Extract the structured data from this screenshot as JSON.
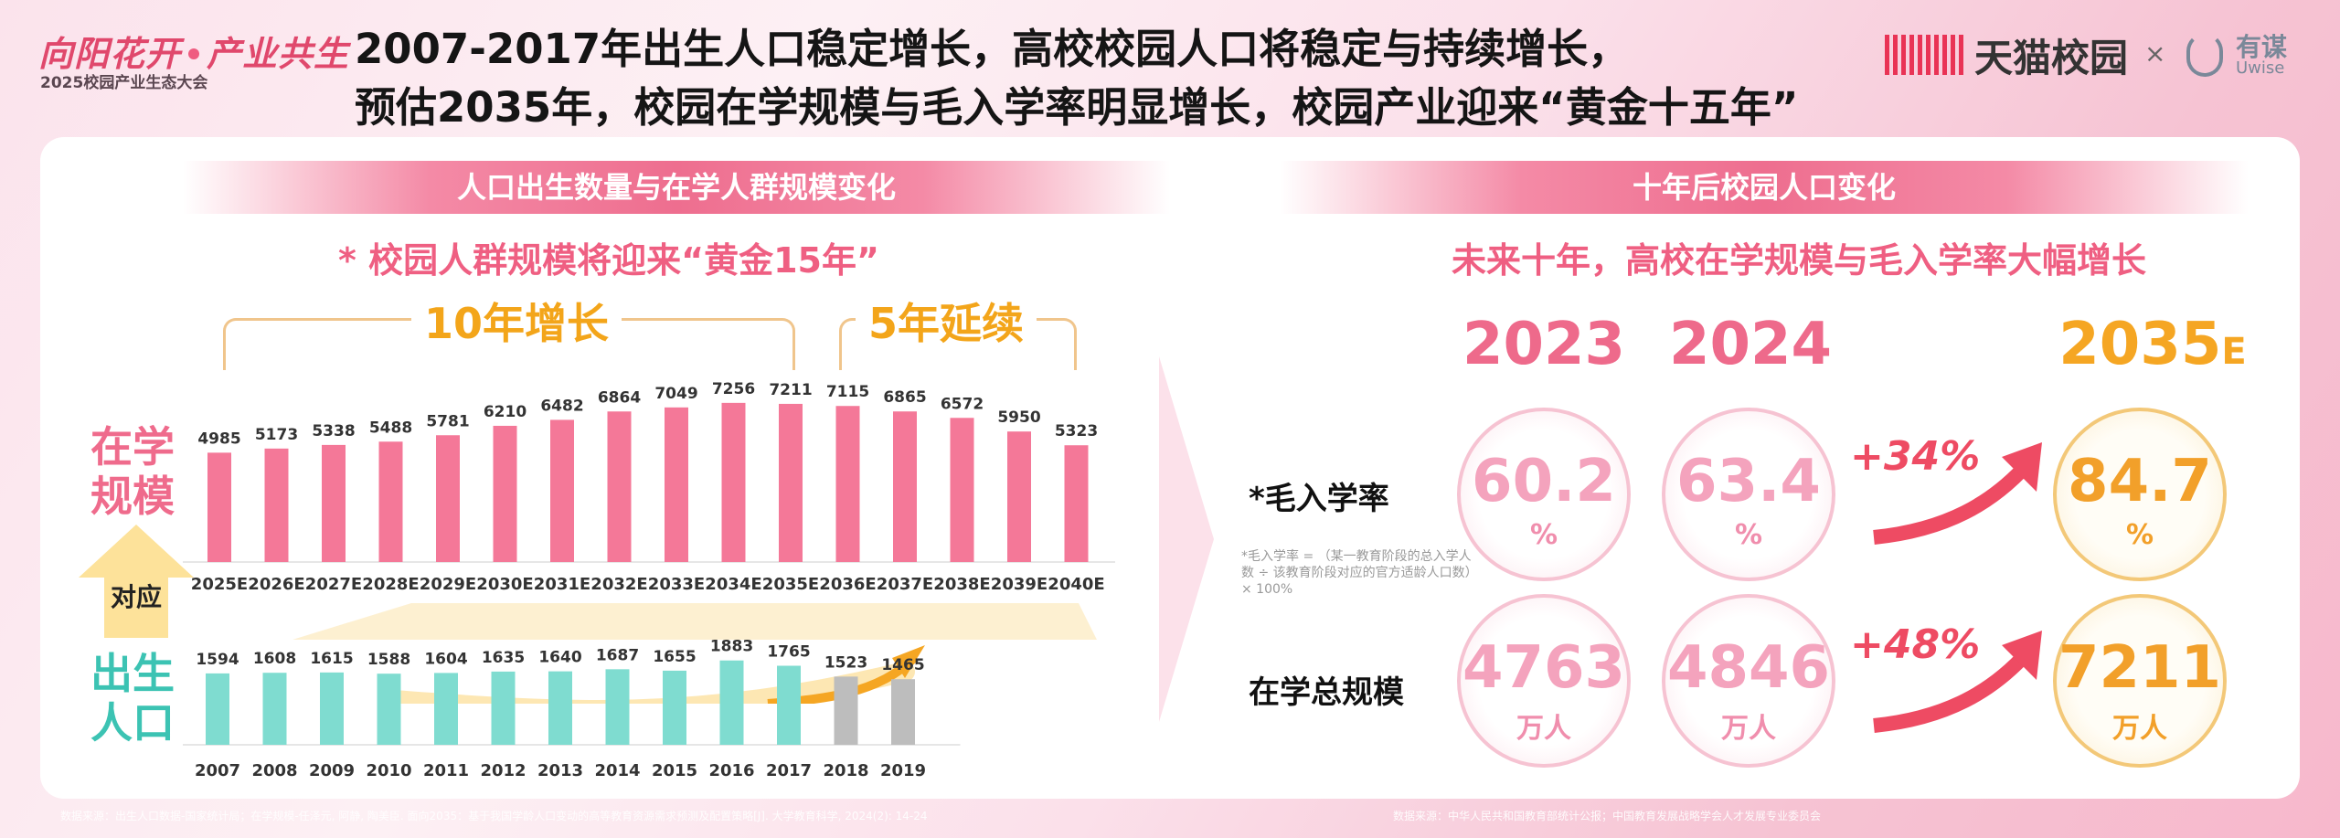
{
  "header": {
    "logo_title_left": "向阳花开",
    "logo_title_right": "产业共生",
    "logo_subtitle": "2025校园产业生态大会",
    "headline_line1": "2007-2017年出生人口稳定增长，高校校园人口将稳定与持续增长，",
    "headline_line2": "预估2035年，校园在学规模与毛入学率明显增长，校园产业迎来“黄金十五年”",
    "brand_tmall": "天猫校园",
    "brand_sep": "×",
    "brand_uwise_cn": "有谋",
    "brand_uwise_en": "Uwise"
  },
  "left_panel": {
    "band_title": "人口出生数量与在学人群规模变化",
    "subtitle": "* 校园人群规模将迎来“黄金15年”",
    "bracket_growth": "10年增长",
    "bracket_continue": "5年延续",
    "label_enrolled": "在学规模",
    "label_births": "出生人口",
    "label_correspond": "对应"
  },
  "chart_data": [
    {
      "type": "bar",
      "name": "在学规模",
      "categories": [
        "2025E",
        "2026E",
        "2027E",
        "2028E",
        "2029E",
        "2030E",
        "2031E",
        "2032E",
        "2033E",
        "2034E",
        "2035E",
        "2036E",
        "2037E",
        "2038E",
        "2039E",
        "2040E"
      ],
      "values": [
        4985,
        5173,
        5338,
        5488,
        5781,
        6210,
        6482,
        6864,
        7049,
        7256,
        7211,
        7115,
        6865,
        6572,
        5950,
        5323
      ],
      "ylim": [
        0,
        7500
      ],
      "color": "#f47898"
    },
    {
      "type": "bar",
      "name": "出生人口",
      "categories": [
        "2007",
        "2008",
        "2009",
        "2010",
        "2011",
        "2012",
        "2013",
        "2014",
        "2015",
        "2016",
        "2017",
        "2018",
        "2019"
      ],
      "values": [
        1594,
        1608,
        1615,
        1588,
        1604,
        1635,
        1640,
        1687,
        1655,
        1883,
        1765,
        1523,
        1465
      ],
      "ylim": [
        0,
        2000
      ],
      "colors": [
        "#7fdcd0",
        "#7fdcd0",
        "#7fdcd0",
        "#7fdcd0",
        "#7fdcd0",
        "#7fdcd0",
        "#7fdcd0",
        "#7fdcd0",
        "#7fdcd0",
        "#7fdcd0",
        "#7fdcd0",
        "#bdbdbd",
        "#bdbdbd"
      ]
    }
  ],
  "right_panel": {
    "band_title": "十年后校园人口变化",
    "subtitle": "未来十年，高校在学规模与毛入学率大幅增长",
    "years": [
      "2023",
      "2024",
      "2035"
    ],
    "year_suffix": "E",
    "row1_label": "*毛入学率",
    "row1_values": [
      "60.2",
      "63.4",
      "84.7"
    ],
    "row1_unit": "%",
    "row1_growth": "+34%",
    "row2_label": "在学总规模",
    "row2_values": [
      "4763",
      "4846",
      "7211"
    ],
    "row2_unit": "万人",
    "row2_growth": "+48%",
    "note": "*毛入学率 = （某一教育阶段的总入学人数 ÷ 该教育阶段对应的官方适龄人口数）× 100%"
  },
  "footer": {
    "left": "数据来源：出生人口数据-国家统计局；在学规模-任泽元, 阿静, 陶美臣. 面向2035：基于我国学龄人口变动的高等教育资源需求预测及配置策略[J]. 大学教育科学, 2024(2): 14-24",
    "right": "数据来源：中华人民共和国教育部统计公报；中国教育发展战略学会人才发展专业委员会"
  },
  "colors": {
    "accent_pink": "#ef5f82",
    "accent_orange": "#f5a623",
    "teal": "#7fdcd0",
    "gray": "#bdbdbd"
  }
}
